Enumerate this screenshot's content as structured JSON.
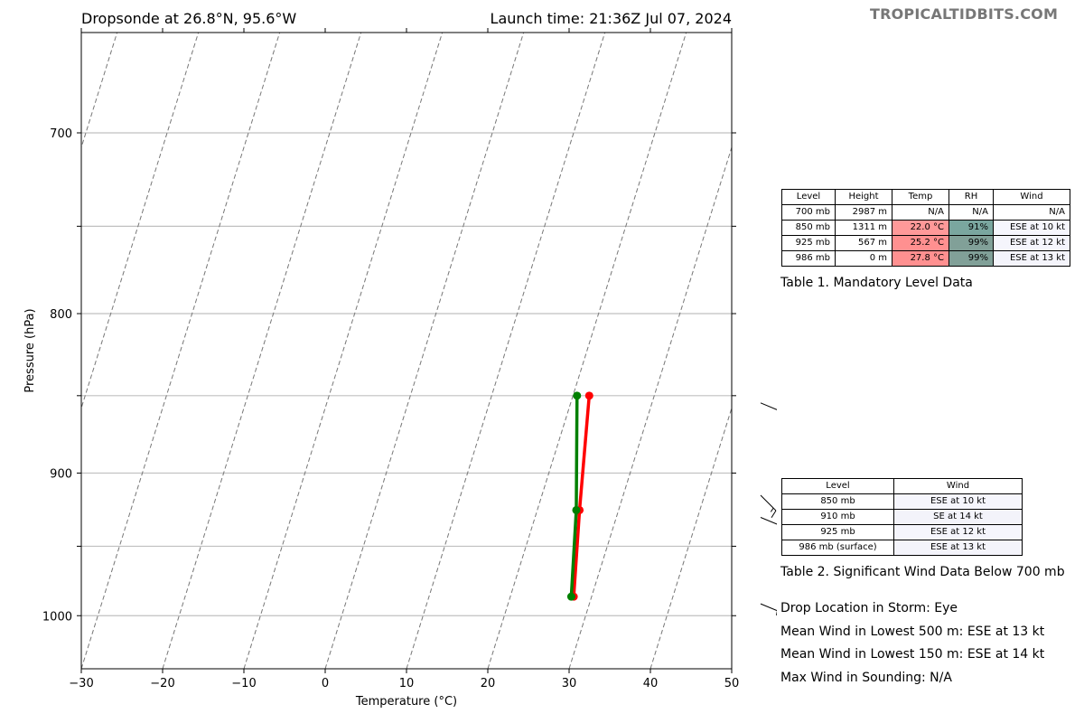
{
  "header": {
    "left_title": "Dropsonde at 26.8°N, 95.6°W",
    "right_title": "Launch time: 21:36Z Jul 07, 2024",
    "watermark": "TROPICALTIDBITS.COM"
  },
  "chart_data": {
    "type": "line",
    "subtype": "skew-t",
    "xlabel": "Temperature (°C)",
    "ylabel": "Pressure (hPa)",
    "xlim": [
      -30,
      50
    ],
    "ylim": [
      1040,
      650
    ],
    "y_scale": "log",
    "x_ticks": [
      -30,
      -20,
      -10,
      0,
      10,
      20,
      30,
      40,
      50
    ],
    "x_tick_labels": [
      "−30",
      "−20",
      "−10",
      "0",
      "10",
      "20",
      "30",
      "40",
      "50"
    ],
    "y_ticks": [
      700,
      800,
      900,
      1000
    ],
    "y_tick_labels": [
      "700",
      "800",
      "900",
      "1000"
    ],
    "y_gridlines": [
      700,
      750,
      800,
      850,
      900,
      950,
      1000
    ],
    "grid": true,
    "series": [
      {
        "color": "#ff0000",
        "points": [
          [
            850,
            22.0
          ],
          [
            925,
            25.2
          ],
          [
            986,
            27.8
          ]
        ]
      },
      {
        "color": "#008000",
        "points": [
          [
            850,
            20.5
          ],
          [
            925,
            24.8
          ],
          [
            986,
            27.5
          ]
        ]
      }
    ],
    "wind_barbs": [
      {
        "pressure": 850,
        "direction": "ESE",
        "speed_kt": 10
      },
      {
        "pressure": 910,
        "direction": "SE",
        "speed_kt": 14
      },
      {
        "pressure": 925,
        "direction": "ESE",
        "speed_kt": 12
      },
      {
        "pressure": 986,
        "direction": "ESE",
        "speed_kt": 13
      }
    ]
  },
  "mandatory_table": {
    "headers": [
      "Level",
      "Height",
      "Temp",
      "RH",
      "Wind"
    ],
    "rows": [
      {
        "level": "700 mb",
        "height": "2987 m",
        "temp": "N/A",
        "rh": "N/A",
        "wind": "N/A",
        "temp_color": "#ffffff",
        "rh_color": "#ffffff",
        "wind_color": "#ffffff"
      },
      {
        "level": "850 mb",
        "height": "1311 m",
        "temp": "22.0 °C",
        "rh": "91%",
        "wind": "ESE at 10 kt",
        "temp_color": "#ff9999",
        "rh_color": "#7aa69f",
        "wind_color": "#f6f6fd"
      },
      {
        "level": "925 mb",
        "height": "567 m",
        "temp": "25.2 °C",
        "rh": "99%",
        "wind": "ESE at 12 kt",
        "temp_color": "#ff9090",
        "rh_color": "#81a098",
        "wind_color": "#f5f5fc"
      },
      {
        "level": "986 mb",
        "height": "0 m",
        "temp": "27.8 °C",
        "rh": "99%",
        "wind": "ESE at 13 kt",
        "temp_color": "#ff9090",
        "rh_color": "#81a098",
        "wind_color": "#f4f4fb"
      }
    ],
    "caption": "Table 1. Mandatory Level Data"
  },
  "significant_wind_table": {
    "headers": [
      "Level",
      "Wind"
    ],
    "rows": [
      {
        "level": "850 mb",
        "wind": "ESE at 10 kt",
        "wind_color": "#f6f6fd"
      },
      {
        "level": "910 mb",
        "wind": "SE at 14 kt",
        "wind_color": "#f3f3fa"
      },
      {
        "level": "925 mb",
        "wind": "ESE at 12 kt",
        "wind_color": "#f5f5fc"
      },
      {
        "level": "986 mb (surface)",
        "wind": "ESE at 13 kt",
        "wind_color": "#f4f4fb"
      }
    ],
    "caption": "Table 2. Significant Wind Data Below 700 mb"
  },
  "stats": {
    "drop_location": "Drop Location in Storm: Eye",
    "mean_wind_500": "Mean Wind in Lowest 500 m:  ESE at 13 kt",
    "mean_wind_150": "Mean Wind in Lowest 150 m:  ESE at 14 kt",
    "max_wind": "Max Wind in Sounding:  N/A"
  }
}
